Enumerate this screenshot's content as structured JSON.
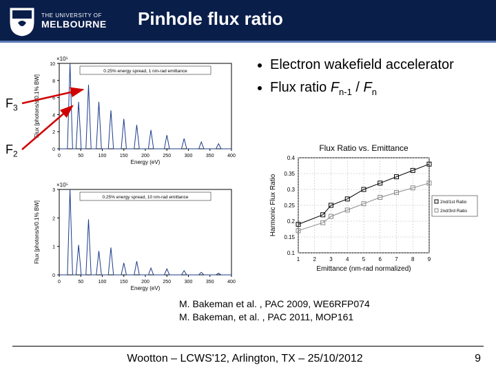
{
  "header": {
    "uni_line1": "THE UNIVERSITY OF",
    "uni_line2": "MELBOURNE",
    "title": "Pinhole flux ratio",
    "bg_color": "#0a1e4a",
    "underline_color": "#5b7ab5"
  },
  "side_labels": {
    "f3": "F",
    "f3_sub": "3",
    "f2": "F",
    "f2_sub": "2"
  },
  "bullets": {
    "item1": "Electron wakefield accelerator",
    "item2_pre": "Flux ratio ",
    "item2_var1": "F",
    "item2_sub1": "n-1",
    "item2_mid": " / ",
    "item2_var2": "F",
    "item2_sub2": "n"
  },
  "chart_top": {
    "inner_label": "0.25% energy spread, 1 nm-rad emittance",
    "ylabel": "Flux [photons/s/0.1% BW]",
    "xlabel": "Energy (eV)",
    "y_exp": "×10⁵",
    "x_ticks": [
      0,
      50,
      100,
      150,
      200,
      250,
      300,
      350,
      400
    ],
    "y_ticks": [
      0,
      2,
      4,
      6,
      8,
      10
    ],
    "peaks_x": [
      25,
      45,
      68,
      92,
      120,
      150,
      180,
      213,
      250,
      290,
      330,
      370
    ],
    "peaks_h": [
      1.0,
      0.55,
      0.75,
      0.55,
      0.45,
      0.35,
      0.28,
      0.22,
      0.16,
      0.12,
      0.08,
      0.06
    ],
    "line_color": "#1a3a8a",
    "f3_peak_index": 2,
    "f2_peak_index": 1
  },
  "chart_bottom": {
    "inner_label": "0.25% energy spread, 10 nm-rad emittance",
    "ylabel": "Flux [photons/s/0.1% BW]",
    "xlabel": "Energy (eV)",
    "y_exp": "×10⁵",
    "x_ticks": [
      0,
      50,
      100,
      150,
      200,
      250,
      300,
      350,
      400
    ],
    "y_ticks": [
      0,
      1,
      2,
      3
    ],
    "peaks_x": [
      25,
      45,
      68,
      92,
      120,
      150,
      180,
      213,
      250,
      290,
      330,
      370
    ],
    "peaks_h": [
      1.0,
      0.35,
      0.65,
      0.28,
      0.32,
      0.14,
      0.16,
      0.08,
      0.07,
      0.05,
      0.03,
      0.02
    ],
    "line_color": "#1a3a8a"
  },
  "ratio_chart": {
    "title": "Flux Ratio vs. Emittance",
    "xlabel": "Emittance (nm-rad normalized)",
    "ylabel": "Harmonic Flux Ratio",
    "xlim": [
      1,
      9
    ],
    "x_ticks": [
      1,
      2,
      3,
      4,
      5,
      6,
      7,
      8,
      9
    ],
    "ylim": [
      0.1,
      0.4
    ],
    "y_ticks": [
      0.1,
      0.15,
      0.2,
      0.25,
      0.3,
      0.35,
      0.4
    ],
    "series1": {
      "label": "2nd/1st Ratio",
      "marker": "square-open",
      "color": "#000000",
      "points": [
        [
          1,
          0.19
        ],
        [
          2.5,
          0.22
        ],
        [
          3,
          0.25
        ],
        [
          4,
          0.27
        ],
        [
          5,
          0.3
        ],
        [
          6,
          0.32
        ],
        [
          7,
          0.34
        ],
        [
          8,
          0.36
        ],
        [
          9,
          0.38
        ]
      ]
    },
    "series2": {
      "label": "2nd/3rd Ratio",
      "marker": "square-open",
      "color": "#888888",
      "points": [
        [
          1,
          0.17
        ],
        [
          2.5,
          0.195
        ],
        [
          3,
          0.215
        ],
        [
          4,
          0.235
        ],
        [
          5,
          0.255
        ],
        [
          6,
          0.275
        ],
        [
          7,
          0.29
        ],
        [
          8,
          0.305
        ],
        [
          9,
          0.32
        ]
      ]
    },
    "grid_color": "#b0b0b0",
    "background_color": "#ffffff",
    "title_fontsize": 12,
    "label_fontsize": 10
  },
  "citations": {
    "line1": "M. Bakeman et al. , PAC 2009, WE6RFP074",
    "line2": "M. Bakeman, et al. , PAC 2011, MOP161"
  },
  "footer": {
    "text": "Wootton – LCWS'12, Arlington, TX – 25/10/2012",
    "page": "9"
  },
  "arrow_color": "#d00000"
}
